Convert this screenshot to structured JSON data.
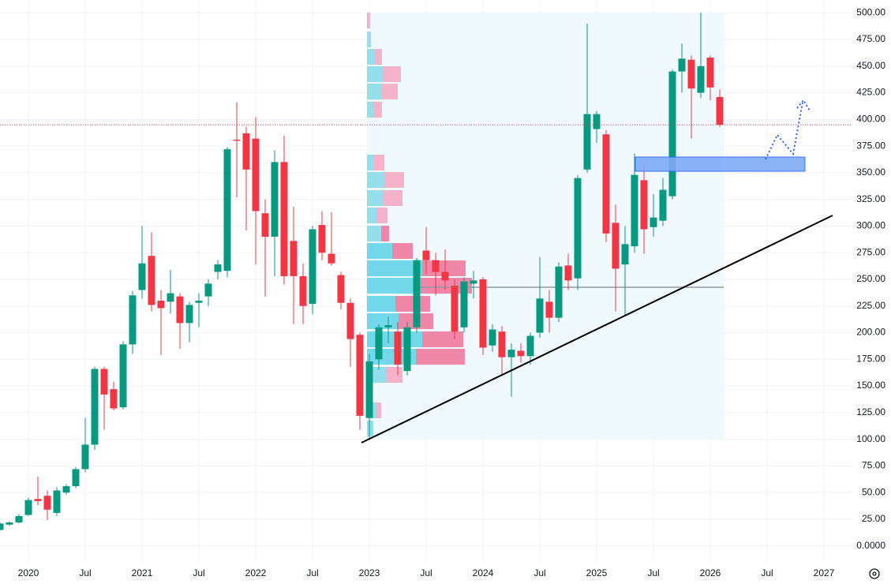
{
  "chart_data": {
    "type": "candlestick",
    "up_color": "#089981",
    "down_color": "#f23645",
    "grid": true,
    "x": [
      "2019-10",
      "2019-11",
      "2019-12",
      "2020-01",
      "2020-02",
      "2020-03",
      "2020-04",
      "2020-05",
      "2020-06",
      "2020-07",
      "2020-08",
      "2020-09",
      "2020-10",
      "2020-11",
      "2020-12",
      "2021-01",
      "2021-02",
      "2021-03",
      "2021-04",
      "2021-05",
      "2021-06",
      "2021-07",
      "2021-08",
      "2021-09",
      "2021-10",
      "2021-11",
      "2021-12",
      "2022-01",
      "2022-02",
      "2022-03",
      "2022-04",
      "2022-05",
      "2022-06",
      "2022-07",
      "2022-08",
      "2022-09",
      "2022-10",
      "2022-11",
      "2022-12",
      "2023-01",
      "2023-02",
      "2023-03",
      "2023-04",
      "2023-05",
      "2023-06",
      "2023-07",
      "2023-08",
      "2023-09",
      "2023-10",
      "2023-11",
      "2023-12",
      "2024-01",
      "2024-02",
      "2024-03",
      "2024-04",
      "2024-05",
      "2024-06",
      "2024-07",
      "2024-08",
      "2024-09",
      "2024-10",
      "2024-11",
      "2024-12",
      "2025-01",
      "2025-02",
      "2025-03",
      "2025-04",
      "2025-05",
      "2025-06",
      "2025-07",
      "2025-08",
      "2025-09",
      "2025-10",
      "2025-11",
      "2025-12",
      "2026-01",
      "2026-02"
    ],
    "open": [
      15,
      20,
      22,
      29,
      44,
      47,
      31,
      50,
      56,
      72,
      95,
      166,
      147,
      130,
      189,
      240,
      272,
      230,
      229,
      234,
      209,
      228,
      234,
      257,
      258,
      381,
      387,
      382,
      312,
      290,
      360,
      286,
      253,
      227,
      301,
      274,
      254,
      228,
      198,
      120,
      175,
      205,
      201,
      164,
      205,
      277,
      268,
      257,
      244,
      205,
      246,
      250,
      188,
      201,
      177,
      183,
      178,
      200,
      229,
      214,
      263,
      251,
      353,
      391,
      386,
      303,
      264,
      281,
      343,
      299,
      305,
      328,
      445,
      456,
      425,
      458,
      421
    ],
    "high": [
      22,
      23,
      30,
      45,
      65,
      52,
      55,
      58,
      74,
      120,
      168,
      168,
      154,
      192,
      239,
      300,
      294,
      240,
      259,
      237,
      229,
      237,
      250,
      268,
      374,
      416,
      393,
      402,
      325,
      371,
      385,
      318,
      265,
      300,
      314,
      313,
      257,
      232,
      200,
      180,
      208,
      215,
      210,
      210,
      270,
      299,
      275,
      278,
      250,
      252,
      258,
      252,
      208,
      206,
      190,
      190,
      200,
      271,
      240,
      266,
      274,
      348,
      490,
      408,
      390,
      320,
      300,
      368,
      358,
      330,
      345,
      447,
      471,
      460,
      500,
      460,
      428
    ],
    "low": [
      14,
      19,
      21,
      28,
      38,
      24,
      28,
      48,
      54,
      69,
      90,
      109,
      127,
      128,
      180,
      232,
      220,
      179,
      218,
      185,
      191,
      205,
      225,
      250,
      252,
      327,
      296,
      264,
      234,
      253,
      245,
      208,
      208,
      217,
      268,
      263,
      222,
      168,
      109,
      101,
      165,
      190,
      160,
      160,
      200,
      255,
      235,
      240,
      194,
      200,
      232,
      179,
      182,
      160,
      140,
      172,
      170,
      195,
      200,
      210,
      240,
      240,
      350,
      378,
      285,
      220,
      216,
      275,
      274,
      290,
      300,
      325,
      425,
      382,
      420,
      418,
      393
    ],
    "close": [
      21,
      22,
      28,
      43,
      42,
      34,
      52,
      56,
      72,
      95,
      166,
      142,
      129,
      189,
      235,
      265,
      226,
      223,
      237,
      209,
      226,
      230,
      246,
      264,
      372,
      380,
      353,
      314,
      290,
      360,
      253,
      253,
      225,
      297,
      275,
      265,
      228,
      194,
      122,
      173,
      205,
      207,
      170,
      205,
      268,
      268,
      257,
      249,
      201,
      248,
      249,
      186,
      203,
      177,
      184,
      178,
      197,
      232,
      214,
      262,
      249,
      345,
      405,
      405,
      293,
      260,
      283,
      348,
      297,
      308,
      334,
      445,
      457,
      429,
      450,
      430,
      395
    ],
    "xlim": [
      "2019-10",
      "2027-04"
    ],
    "xticks": [
      {
        "value": "2020-01",
        "label": "2020"
      },
      {
        "value": "2020-07",
        "label": "Jul"
      },
      {
        "value": "2021-01",
        "label": "2021"
      },
      {
        "value": "2021-07",
        "label": "Jul"
      },
      {
        "value": "2022-01",
        "label": "2022"
      },
      {
        "value": "2022-07",
        "label": "Jul"
      },
      {
        "value": "2023-01",
        "label": "2023"
      },
      {
        "value": "2023-07",
        "label": "Jul"
      },
      {
        "value": "2024-01",
        "label": "2024"
      },
      {
        "value": "2024-07",
        "label": "Jul"
      },
      {
        "value": "2025-01",
        "label": "2025"
      },
      {
        "value": "2025-07",
        "label": "Jul"
      },
      {
        "value": "2026-01",
        "label": "2026"
      },
      {
        "value": "2026-07",
        "label": "Jul"
      },
      {
        "value": "2027-01",
        "label": "2027"
      }
    ],
    "ylim": [
      -15,
      512
    ],
    "yticks": [
      {
        "value": 0,
        "label": "0.0000"
      },
      {
        "value": 25,
        "label": "25.00"
      },
      {
        "value": 50,
        "label": "50.00"
      },
      {
        "value": 75,
        "label": "75.00"
      },
      {
        "value": 100,
        "label": "100.00"
      },
      {
        "value": 125,
        "label": "125.00"
      },
      {
        "value": 150,
        "label": "150.00"
      },
      {
        "value": 175,
        "label": "175.00"
      },
      {
        "value": 200,
        "label": "200.00"
      },
      {
        "value": 225,
        "label": "225.00"
      },
      {
        "value": 250,
        "label": "250.00"
      },
      {
        "value": 275,
        "label": "275.00"
      },
      {
        "value": 300,
        "label": "300.00"
      },
      {
        "value": 325,
        "label": "325.00"
      },
      {
        "value": 350,
        "label": "350.00"
      },
      {
        "value": 375,
        "label": "375.00"
      },
      {
        "value": 400,
        "label": "400.00"
      },
      {
        "value": 425,
        "label": "425.00"
      },
      {
        "value": 450,
        "label": "450.00"
      },
      {
        "value": 475,
        "label": "475.00"
      },
      {
        "value": 500,
        "label": "500.00"
      }
    ]
  }
}
